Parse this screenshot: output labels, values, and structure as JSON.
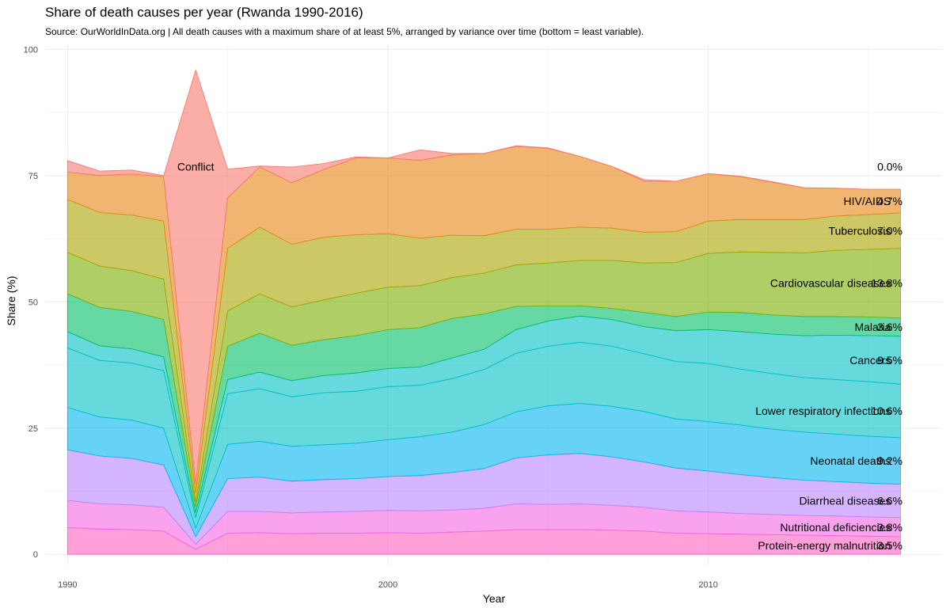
{
  "chart_data": {
    "type": "area",
    "stacked": true,
    "title": "Share of death causes per year (Rwanda 1990-2016)",
    "subtitle": "Source: OurWorldInData.org | All death causes with a maximum share of at least 5%, arranged by variance over time (bottom = least variable).",
    "xlabel": "Year",
    "ylabel": "Share (%)",
    "xlim": [
      1989.3,
      2017.3
    ],
    "ylim": [
      -2,
      101
    ],
    "x_ticks": [
      1990,
      2000,
      2010
    ],
    "y_ticks": [
      0,
      25,
      50,
      75,
      100
    ],
    "grid": true,
    "legend": "direct labels at right",
    "x": [
      1990,
      1991,
      1992,
      1993,
      1994,
      1995,
      1996,
      1997,
      1998,
      1999,
      2000,
      2001,
      2002,
      2003,
      2004,
      2005,
      2006,
      2007,
      2008,
      2009,
      2010,
      2011,
      2012,
      2013,
      2014,
      2015,
      2016
    ],
    "series": [
      {
        "name": "Protein-energy malnutrition",
        "share_label": "3.5%",
        "color": "#FF61C3",
        "values": [
          5.3,
          5.0,
          4.9,
          4.6,
          1.0,
          4.2,
          4.3,
          4.1,
          4.2,
          4.2,
          4.3,
          4.2,
          4.4,
          4.6,
          4.9,
          4.9,
          4.9,
          4.8,
          4.6,
          4.2,
          4.1,
          4.0,
          3.9,
          3.8,
          3.7,
          3.6,
          3.5
        ]
      },
      {
        "name": "Nutritional deficiencies",
        "share_label": "3.8%",
        "color": "#F564E3",
        "values": [
          5.4,
          5.0,
          4.9,
          4.7,
          1.0,
          4.3,
          4.2,
          4.1,
          4.2,
          4.3,
          4.4,
          4.4,
          4.4,
          4.5,
          5.1,
          5.0,
          5.1,
          4.9,
          4.7,
          4.4,
          4.3,
          4.1,
          4.0,
          3.9,
          3.9,
          3.8,
          3.8
        ]
      },
      {
        "name": "Diarrheal diseases",
        "share_label": "6.6%",
        "color": "#B983FF",
        "values": [
          10.0,
          9.5,
          9.2,
          8.4,
          1.5,
          6.5,
          6.8,
          6.3,
          6.4,
          6.5,
          6.7,
          7.0,
          7.4,
          7.9,
          9.1,
          9.8,
          10.0,
          9.6,
          9.0,
          8.5,
          8.1,
          7.7,
          7.3,
          7.0,
          6.8,
          6.7,
          6.6
        ]
      },
      {
        "name": "Neonatal deaths",
        "share_label": "9.2%",
        "color": "#00B4F0",
        "values": [
          8.4,
          7.7,
          7.6,
          7.3,
          1.7,
          6.8,
          7.1,
          6.9,
          6.9,
          7.0,
          7.3,
          7.7,
          8.0,
          8.7,
          9.1,
          9.7,
          9.9,
          10.0,
          10.0,
          9.7,
          9.8,
          9.8,
          9.6,
          9.5,
          9.4,
          9.3,
          9.2
        ]
      },
      {
        "name": "Lower respiratory infections",
        "share_label": "10.6%",
        "color": "#00BFC4",
        "values": [
          11.8,
          11.2,
          11.3,
          11.4,
          2.0,
          10.0,
          10.4,
          9.8,
          10.3,
          10.3,
          10.5,
          10.2,
          10.6,
          10.9,
          11.6,
          11.8,
          12.1,
          11.9,
          11.4,
          11.4,
          11.5,
          11.1,
          11.0,
          10.8,
          10.8,
          10.8,
          10.6
        ]
      },
      {
        "name": "Cancers",
        "share_label": "9.5%",
        "color": "#00BFC4",
        "values": [
          3.2,
          2.9,
          2.8,
          2.7,
          1.0,
          2.8,
          3.3,
          3.2,
          3.4,
          3.6,
          3.6,
          3.6,
          4.1,
          4.0,
          4.7,
          5.0,
          5.2,
          5.3,
          5.4,
          6.1,
          6.7,
          7.4,
          7.8,
          8.3,
          8.8,
          9.1,
          9.5
        ]
      },
      {
        "name": "Malaria",
        "share_label": "3.6%",
        "color": "#00BE67",
        "values": [
          7.5,
          7.6,
          7.4,
          7.4,
          1.2,
          6.6,
          7.7,
          7.0,
          7.1,
          7.4,
          7.7,
          7.8,
          7.8,
          7.0,
          4.6,
          3.0,
          2.0,
          2.2,
          2.8,
          2.8,
          3.5,
          3.8,
          3.8,
          3.8,
          3.7,
          3.7,
          3.6
        ]
      },
      {
        "name": "Cardiovascular diseases",
        "share_label": "13.8%",
        "color": "#7CAE00",
        "values": [
          8.2,
          8.2,
          8.1,
          8.0,
          1.0,
          7.0,
          7.8,
          7.6,
          7.9,
          8.4,
          8.4,
          8.3,
          8.1,
          8.1,
          8.2,
          8.5,
          9.0,
          9.5,
          9.8,
          10.7,
          11.6,
          12.0,
          12.4,
          12.6,
          13.1,
          13.4,
          13.8
        ]
      },
      {
        "name": "Tuberculosis",
        "share_label": "7.0%",
        "color": "#ABA300",
        "values": [
          10.5,
          10.6,
          11.0,
          11.5,
          1.7,
          12.4,
          13.2,
          12.4,
          12.4,
          11.6,
          10.6,
          9.4,
          8.4,
          7.4,
          7.1,
          6.7,
          6.6,
          6.4,
          6.1,
          6.1,
          6.4,
          6.4,
          6.5,
          6.6,
          6.8,
          6.9,
          7.0
        ]
      },
      {
        "name": "HIV/AIDS",
        "share_label": "4.7%",
        "color": "#E68613",
        "values": [
          5.4,
          7.3,
          8.1,
          8.8,
          1.8,
          10.0,
          11.9,
          12.2,
          13.4,
          15.2,
          15.0,
          15.4,
          15.9,
          16.3,
          16.4,
          16.0,
          14.0,
          12.2,
          10.1,
          10.0,
          9.4,
          8.5,
          7.4,
          6.3,
          5.5,
          5.0,
          4.7
        ]
      },
      {
        "name": "Conflict",
        "share_label": "0.0%",
        "color": "#F8766D",
        "values": [
          2.3,
          0.9,
          0.8,
          0.2,
          82.0,
          5.7,
          0.2,
          3.1,
          1.2,
          0.2,
          0.0,
          2.1,
          0.3,
          0.0,
          0.1,
          0.1,
          0.0,
          0.0,
          0.3,
          0.0,
          0.0,
          0.1,
          0.1,
          0.0,
          0.0,
          0.0,
          0.0
        ]
      }
    ]
  }
}
